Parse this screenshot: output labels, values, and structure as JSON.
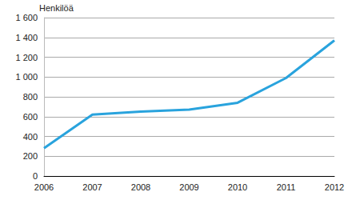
{
  "chart_data": {
    "type": "line",
    "ylabel": "Henkilöä",
    "categories": [
      "2006",
      "2007",
      "2008",
      "2009",
      "2010",
      "2011",
      "2012"
    ],
    "values": [
      280,
      620,
      650,
      670,
      740,
      990,
      1370
    ],
    "color": "#29a3dd",
    "ylim": [
      0,
      1600
    ],
    "yticks": [
      0,
      200,
      400,
      600,
      800,
      {
        "value": 1000,
        "label": "1 000"
      },
      {
        "value": 1200,
        "label": "1 200"
      },
      {
        "value": 1400,
        "label": "1 400"
      },
      {
        "value": 1600,
        "label": "1 600"
      }
    ],
    "grid": true
  }
}
